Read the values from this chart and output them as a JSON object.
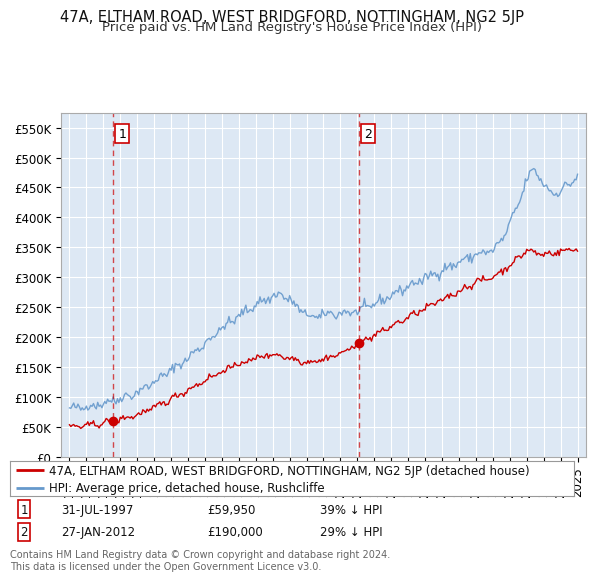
{
  "title": "47A, ELTHAM ROAD, WEST BRIDGFORD, NOTTINGHAM, NG2 5JP",
  "subtitle": "Price paid vs. HM Land Registry's House Price Index (HPI)",
  "ylim": [
    0,
    575000
  ],
  "yticks": [
    0,
    50000,
    100000,
    150000,
    200000,
    250000,
    300000,
    350000,
    400000,
    450000,
    500000,
    550000
  ],
  "ytick_labels": [
    "£0",
    "£50K",
    "£100K",
    "£150K",
    "£200K",
    "£250K",
    "£300K",
    "£350K",
    "£400K",
    "£450K",
    "£500K",
    "£550K"
  ],
  "xlim_start": 1994.5,
  "xlim_end": 2025.5,
  "sale1_x": 1997.58,
  "sale1_y": 59950,
  "sale1_label": "1",
  "sale1_date": "31-JUL-1997",
  "sale1_price": "£59,950",
  "sale1_hpi": "39% ↓ HPI",
  "sale2_x": 2012.07,
  "sale2_y": 190000,
  "sale2_label": "2",
  "sale2_date": "27-JAN-2012",
  "sale2_price": "£190,000",
  "sale2_hpi": "29% ↓ HPI",
  "red_color": "#cc0000",
  "blue_color": "#6699cc",
  "background_color": "#dde8f4",
  "grid_color": "#ffffff",
  "legend_label_red": "47A, ELTHAM ROAD, WEST BRIDGFORD, NOTTINGHAM, NG2 5JP (detached house)",
  "legend_label_blue": "HPI: Average price, detached house, Rushcliffe",
  "footer_text": "Contains HM Land Registry data © Crown copyright and database right 2024.\nThis data is licensed under the Open Government Licence v3.0.",
  "title_fontsize": 10.5,
  "subtitle_fontsize": 9.5,
  "tick_fontsize": 8.5,
  "legend_fontsize": 8.5,
  "footer_fontsize": 7.0
}
